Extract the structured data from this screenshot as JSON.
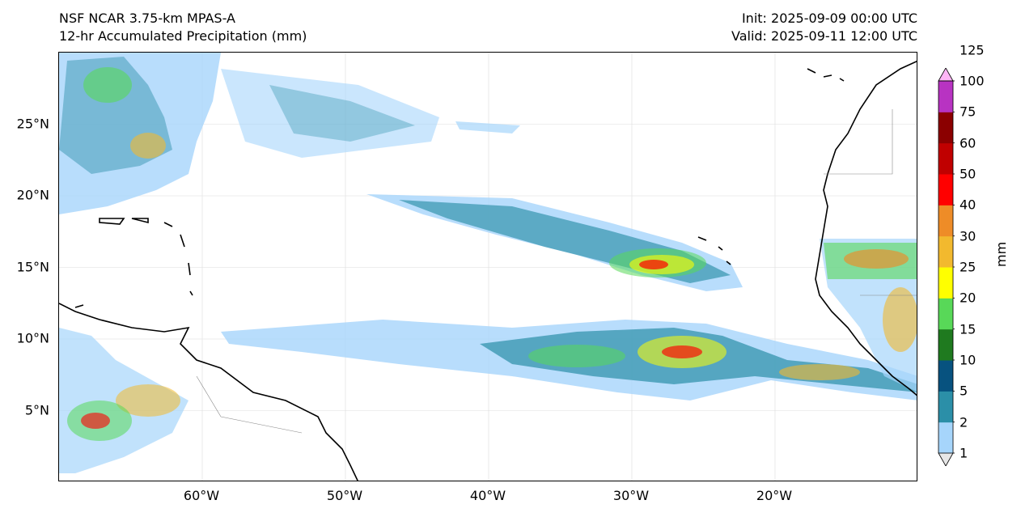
{
  "header": {
    "title_line1": "NSF NCAR 3.75-km MPAS-A",
    "title_line2": "12-hr Accumulated Precipitation (mm)",
    "init": "Init: 2025-09-09 00:00 UTC",
    "valid": "Valid: 2025-09-11 12:00 UTC"
  },
  "map": {
    "lat_labels": [
      {
        "text": "25°N",
        "lat": 25
      },
      {
        "text": "20°N",
        "lat": 20
      },
      {
        "text": "15°N",
        "lat": 15
      },
      {
        "text": "10°N",
        "lat": 10
      },
      {
        "text": "5°N",
        "lat": 5
      }
    ],
    "lon_labels": [
      {
        "text": "60°W",
        "lon": -60
      },
      {
        "text": "50°W",
        "lon": -50
      },
      {
        "text": "40°W",
        "lon": -40
      },
      {
        "text": "30°W",
        "lon": -30
      },
      {
        "text": "20°W",
        "lon": -20
      }
    ],
    "extent": {
      "lon_min": -70,
      "lon_max": -10,
      "lat_min": 0,
      "lat_max": 30
    },
    "gridlines": true
  },
  "colorbar": {
    "unit": "mm",
    "levels": [
      "1",
      "2",
      "5",
      "10",
      "15",
      "20",
      "25",
      "30",
      "40",
      "50",
      "60",
      "75",
      "100",
      "125"
    ],
    "colors": [
      "#e6e6e6",
      "#a6d5fb",
      "#2b8fa8",
      "#07527f",
      "#1f7a1f",
      "#58d858",
      "#ffff00",
      "#f2b92e",
      "#ee8c27",
      "#ff0000",
      "#c00000",
      "#8b0000",
      "#b833c2",
      "#ffb6f6"
    ]
  }
}
